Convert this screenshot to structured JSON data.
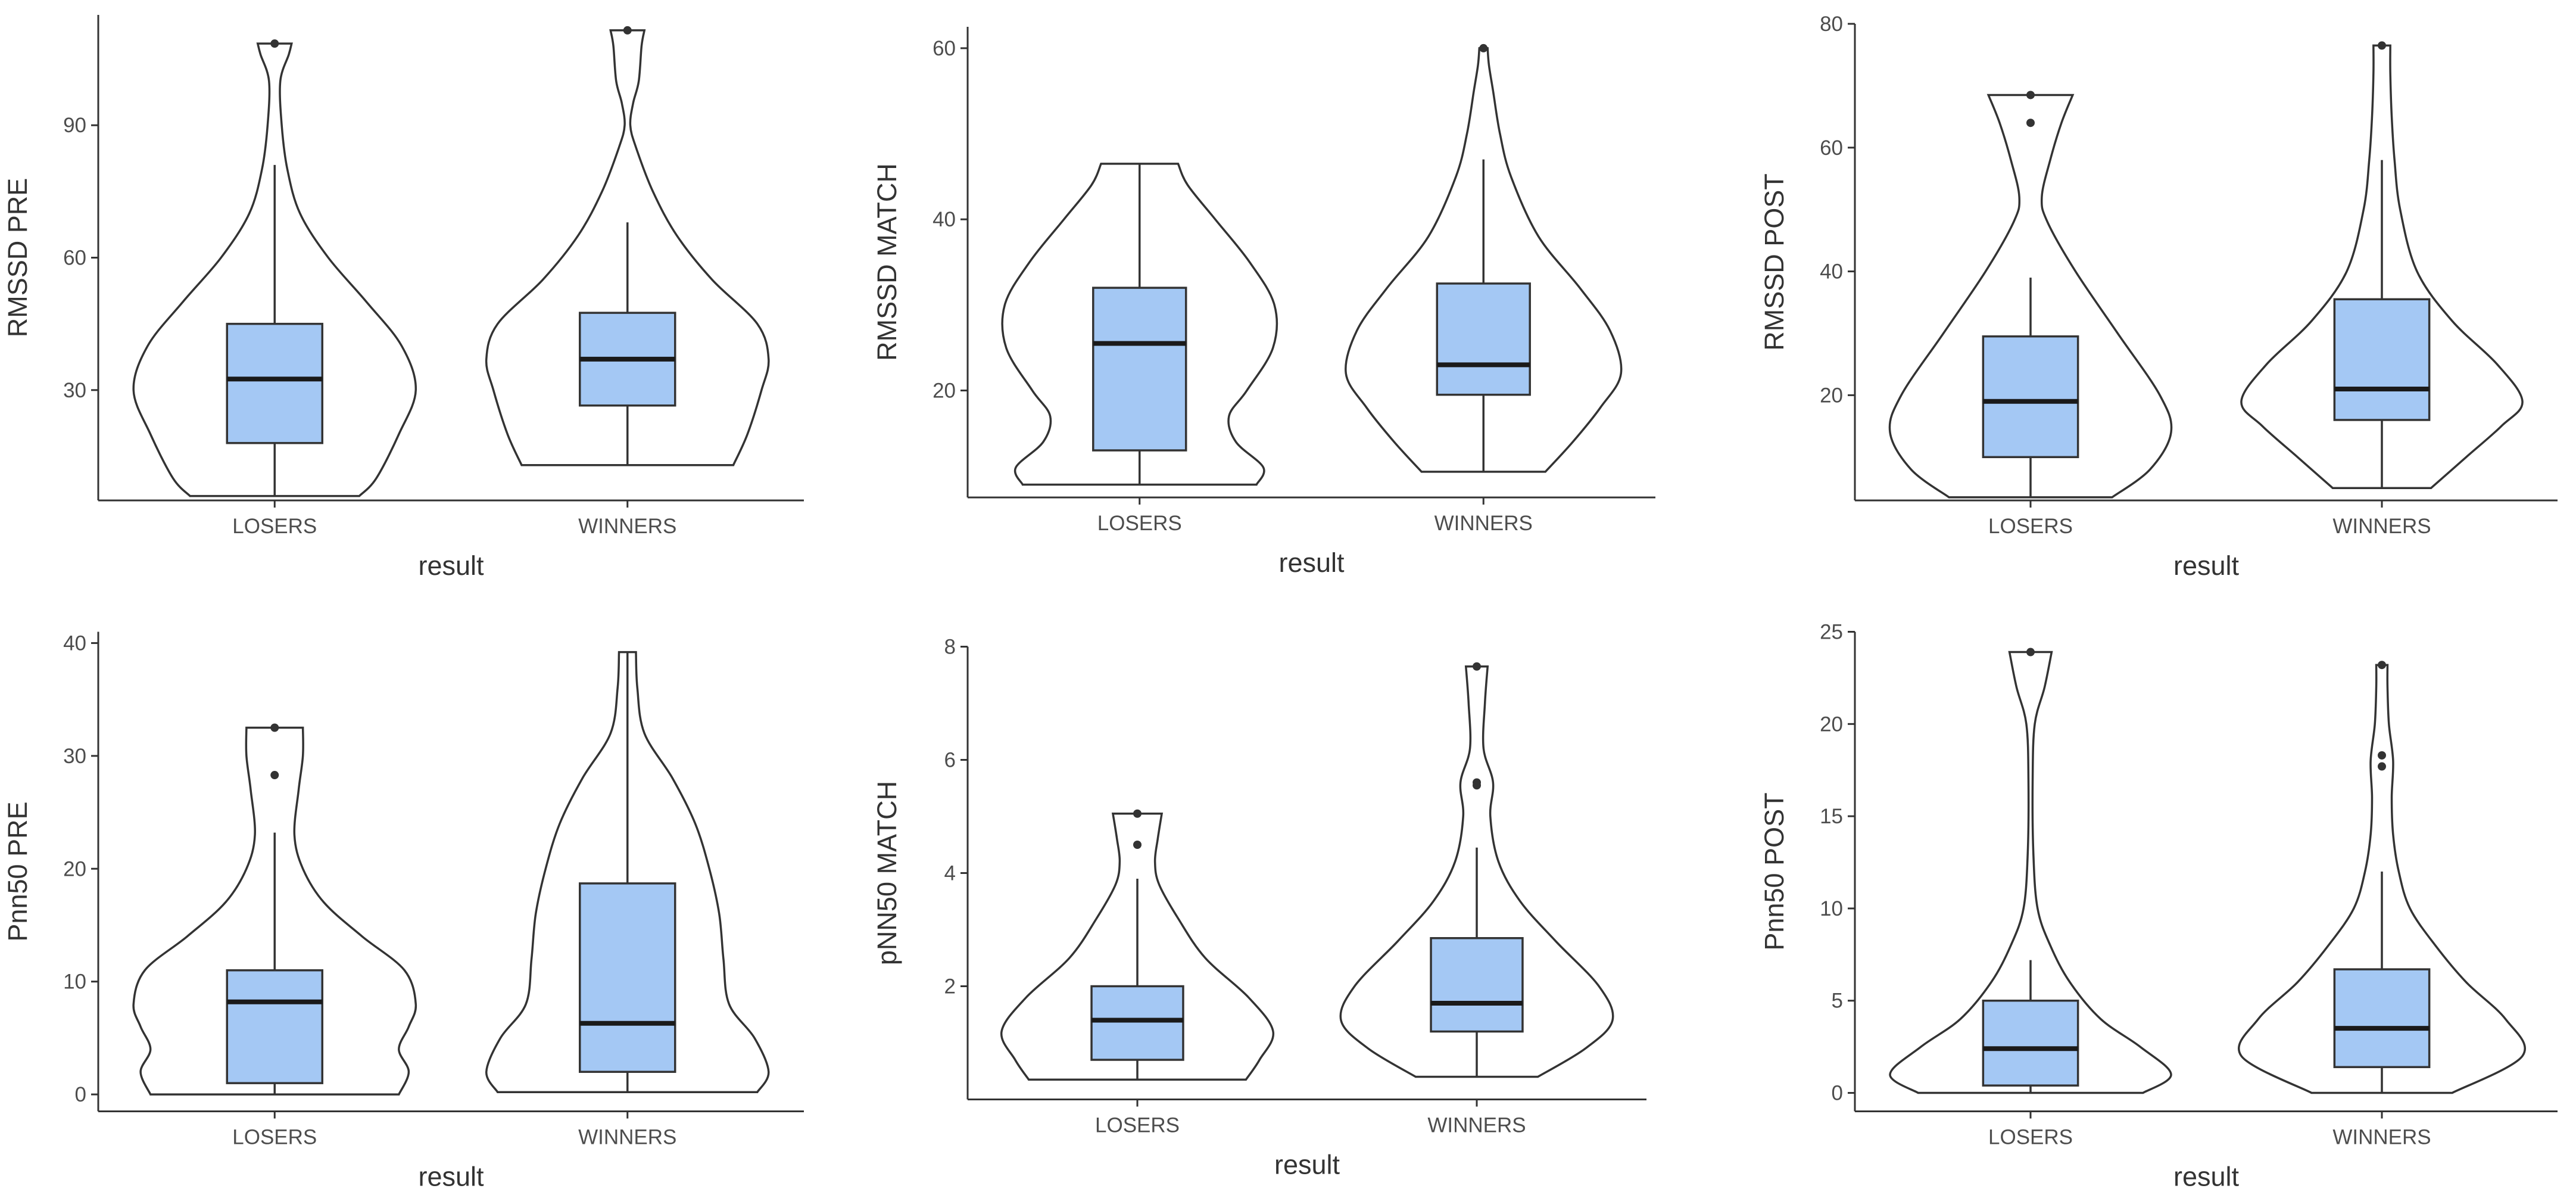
{
  "colors": {
    "box_fill": "#a4c8f4",
    "outline": "#333333",
    "background": "#ffffff"
  },
  "chart_data": [
    {
      "type": "violin",
      "xlabel": "result",
      "ylabel": "RMSSD PRE",
      "categories": [
        "LOSERS",
        "WINNERS"
      ],
      "ylim": [
        5,
        115
      ],
      "yticks": [
        30,
        60,
        90
      ],
      "groups": [
        {
          "name": "LOSERS",
          "min": 6,
          "q1": 18,
          "median": 32.5,
          "q3": 45,
          "whisker_high": 81,
          "max": 108.5,
          "outliers": [
            108.5
          ],
          "density": [
            [
              6,
              0.6
            ],
            [
              10,
              0.72
            ],
            [
              20,
              0.88
            ],
            [
              30,
              1.0
            ],
            [
              40,
              0.9
            ],
            [
              50,
              0.65
            ],
            [
              60,
              0.38
            ],
            [
              70,
              0.18
            ],
            [
              80,
              0.09
            ],
            [
              90,
              0.05
            ],
            [
              100,
              0.04
            ],
            [
              106,
              0.1
            ],
            [
              108.5,
              0.12
            ]
          ]
        },
        {
          "name": "WINNERS",
          "min": 13,
          "q1": 26.5,
          "median": 37,
          "q3": 47.5,
          "whisker_high": 68,
          "max": 111.5,
          "outliers": [
            111.5
          ],
          "density": [
            [
              13,
              0.75
            ],
            [
              20,
              0.85
            ],
            [
              30,
              0.95
            ],
            [
              37,
              1.0
            ],
            [
              45,
              0.92
            ],
            [
              55,
              0.6
            ],
            [
              65,
              0.35
            ],
            [
              75,
              0.18
            ],
            [
              85,
              0.06
            ],
            [
              90,
              0.02
            ],
            [
              95,
              0.04
            ],
            [
              100,
              0.08
            ],
            [
              108,
              0.1
            ],
            [
              111.5,
              0.12
            ]
          ]
        }
      ]
    },
    {
      "type": "violin",
      "xlabel": "result",
      "ylabel": "RMSSD MATCH",
      "categories": [
        "LOSERS",
        "WINNERS"
      ],
      "ylim": [
        7.5,
        62.5
      ],
      "yticks": [
        20,
        40,
        60
      ],
      "groups": [
        {
          "name": "LOSERS",
          "min": 9,
          "q1": 13,
          "median": 25.5,
          "q3": 32,
          "whisker_high": 46.5,
          "max": 46.5,
          "outliers": [],
          "density": [
            [
              9,
              0.85
            ],
            [
              11,
              0.9
            ],
            [
              14,
              0.7
            ],
            [
              17,
              0.65
            ],
            [
              20,
              0.78
            ],
            [
              25,
              0.97
            ],
            [
              30,
              0.98
            ],
            [
              35,
              0.8
            ],
            [
              40,
              0.55
            ],
            [
              44,
              0.35
            ],
            [
              46.5,
              0.28
            ]
          ]
        },
        {
          "name": "WINNERS",
          "min": 10.5,
          "q1": 19.5,
          "median": 23,
          "q3": 32.5,
          "whisker_high": 47,
          "max": 60,
          "outliers": [
            60
          ],
          "density": [
            [
              10.5,
              0.45
            ],
            [
              14,
              0.65
            ],
            [
              18,
              0.85
            ],
            [
              22,
              1.0
            ],
            [
              27,
              0.92
            ],
            [
              32,
              0.7
            ],
            [
              38,
              0.4
            ],
            [
              45,
              0.2
            ],
            [
              50,
              0.12
            ],
            [
              55,
              0.07
            ],
            [
              58,
              0.04
            ],
            [
              60,
              0.03
            ]
          ]
        }
      ]
    },
    {
      "type": "violin",
      "xlabel": "result",
      "ylabel": "RMSSD POST",
      "categories": [
        "LOSERS",
        "WINNERS"
      ],
      "ylim": [
        3,
        80
      ],
      "yticks": [
        20,
        40,
        60,
        80
      ],
      "groups": [
        {
          "name": "LOSERS",
          "min": 3.5,
          "q1": 10,
          "median": 19,
          "q3": 29.5,
          "whisker_high": 39,
          "max": 68.5,
          "outliers": [
            68.5,
            64
          ],
          "density": [
            [
              3.5,
              0.58
            ],
            [
              8,
              0.85
            ],
            [
              14,
              1.0
            ],
            [
              20,
              0.92
            ],
            [
              30,
              0.62
            ],
            [
              40,
              0.32
            ],
            [
              48,
              0.12
            ],
            [
              52,
              0.08
            ],
            [
              58,
              0.14
            ],
            [
              64,
              0.22
            ],
            [
              68.5,
              0.3
            ]
          ]
        },
        {
          "name": "WINNERS",
          "min": 5,
          "q1": 16,
          "median": 21,
          "q3": 35.5,
          "whisker_high": 58,
          "max": 76.5,
          "outliers": [
            76.5
          ],
          "density": [
            [
              5,
              0.35
            ],
            [
              10,
              0.6
            ],
            [
              15,
              0.85
            ],
            [
              19,
              1.0
            ],
            [
              25,
              0.82
            ],
            [
              32,
              0.5
            ],
            [
              40,
              0.25
            ],
            [
              50,
              0.13
            ],
            [
              58,
              0.09
            ],
            [
              65,
              0.07
            ],
            [
              72,
              0.06
            ],
            [
              76.5,
              0.06
            ]
          ]
        }
      ]
    },
    {
      "type": "violin",
      "xlabel": "result",
      "ylabel": "Pnn50 PRE",
      "categories": [
        "LOSERS",
        "WINNERS"
      ],
      "ylim": [
        -1.5,
        41
      ],
      "yticks": [
        0,
        10,
        20,
        30,
        40
      ],
      "groups": [
        {
          "name": "LOSERS",
          "min": 0,
          "q1": 1,
          "median": 8.2,
          "q3": 11,
          "whisker_high": 23.2,
          "max": 32.5,
          "outliers": [
            32.5,
            28.3
          ],
          "density": [
            [
              0,
              0.88
            ],
            [
              2,
              0.95
            ],
            [
              4,
              0.88
            ],
            [
              6,
              0.95
            ],
            [
              8,
              1.0
            ],
            [
              11,
              0.92
            ],
            [
              14,
              0.62
            ],
            [
              17,
              0.35
            ],
            [
              20,
              0.2
            ],
            [
              23,
              0.14
            ],
            [
              27,
              0.17
            ],
            [
              30,
              0.2
            ],
            [
              32.5,
              0.2
            ]
          ]
        },
        {
          "name": "WINNERS",
          "min": 0.2,
          "q1": 2,
          "median": 6.3,
          "q3": 18.7,
          "whisker_high": 39.2,
          "max": 39.2,
          "outliers": [],
          "density": [
            [
              0.2,
              0.92
            ],
            [
              2,
              1.0
            ],
            [
              5,
              0.9
            ],
            [
              8,
              0.72
            ],
            [
              12,
              0.68
            ],
            [
              16,
              0.65
            ],
            [
              20,
              0.58
            ],
            [
              24,
              0.48
            ],
            [
              28,
              0.32
            ],
            [
              32,
              0.12
            ],
            [
              36,
              0.07
            ],
            [
              39.2,
              0.06
            ]
          ]
        }
      ]
    },
    {
      "type": "violin",
      "xlabel": "result",
      "ylabel": "pNN50 MATCH",
      "categories": [
        "LOSERS",
        "WINNERS"
      ],
      "ylim": [
        0,
        8
      ],
      "yticks": [
        2,
        4,
        6,
        8
      ],
      "groups": [
        {
          "name": "LOSERS",
          "min": 0.35,
          "q1": 0.7,
          "median": 1.4,
          "q3": 2,
          "whisker_high": 3.9,
          "max": 5.05,
          "outliers": [
            5.05,
            4.5
          ],
          "density": [
            [
              0.35,
              0.8
            ],
            [
              0.7,
              0.9
            ],
            [
              1.2,
              1.0
            ],
            [
              1.8,
              0.82
            ],
            [
              2.5,
              0.5
            ],
            [
              3.2,
              0.3
            ],
            [
              3.8,
              0.16
            ],
            [
              4.2,
              0.13
            ],
            [
              4.6,
              0.15
            ],
            [
              5.05,
              0.18
            ]
          ]
        },
        {
          "name": "WINNERS",
          "min": 0.4,
          "q1": 1.2,
          "median": 1.7,
          "q3": 2.85,
          "whisker_high": 4.45,
          "max": 7.65,
          "outliers": [
            7.65,
            5.6,
            5.55
          ],
          "density": [
            [
              0.4,
              0.45
            ],
            [
              0.9,
              0.8
            ],
            [
              1.4,
              1.0
            ],
            [
              2,
              0.9
            ],
            [
              2.8,
              0.58
            ],
            [
              3.5,
              0.32
            ],
            [
              4.2,
              0.16
            ],
            [
              5,
              0.1
            ],
            [
              5.6,
              0.12
            ],
            [
              6.2,
              0.05
            ],
            [
              7,
              0.06
            ],
            [
              7.65,
              0.08
            ]
          ]
        }
      ]
    },
    {
      "type": "violin",
      "xlabel": "result",
      "ylabel": "Pnn50 POST",
      "categories": [
        "LOSERS",
        "WINNERS"
      ],
      "ylim": [
        -1,
        25
      ],
      "yticks": [
        0,
        5,
        10,
        15,
        20,
        25
      ],
      "groups": [
        {
          "name": "LOSERS",
          "min": 0,
          "q1": 0.4,
          "median": 2.4,
          "q3": 5,
          "whisker_high": 7.2,
          "max": 23.9,
          "outliers": [
            23.9
          ],
          "density": [
            [
              0,
              0.8
            ],
            [
              1,
              1.0
            ],
            [
              2.5,
              0.78
            ],
            [
              4,
              0.5
            ],
            [
              6,
              0.28
            ],
            [
              8,
              0.14
            ],
            [
              10,
              0.05
            ],
            [
              13,
              0.02
            ],
            [
              17,
              0.015
            ],
            [
              20,
              0.03
            ],
            [
              22,
              0.1
            ],
            [
              23.9,
              0.15
            ]
          ]
        },
        {
          "name": "WINNERS",
          "min": 0,
          "q1": 1.4,
          "median": 3.5,
          "q3": 6.7,
          "whisker_high": 12,
          "max": 23.2,
          "outliers": [
            23.2,
            18.3,
            17.7
          ],
          "density": [
            [
              0,
              0.5
            ],
            [
              2,
              1.0
            ],
            [
              4,
              0.88
            ],
            [
              6,
              0.6
            ],
            [
              8,
              0.38
            ],
            [
              10,
              0.2
            ],
            [
              12,
              0.12
            ],
            [
              14,
              0.08
            ],
            [
              16,
              0.07
            ],
            [
              18,
              0.08
            ],
            [
              20,
              0.05
            ],
            [
              22,
              0.04
            ],
            [
              23.2,
              0.04
            ]
          ]
        }
      ]
    }
  ]
}
